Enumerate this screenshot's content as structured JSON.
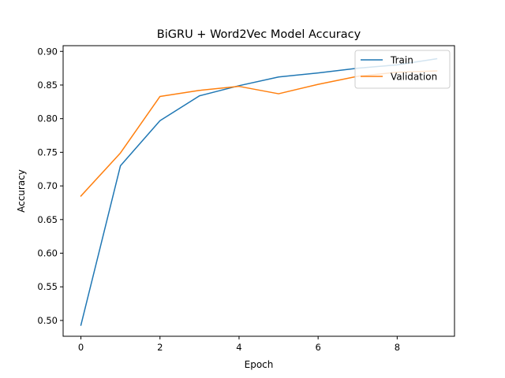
{
  "chart_data": {
    "type": "line",
    "title": "BiGRU + Word2Vec Model Accuracy",
    "xlabel": "Epoch",
    "ylabel": "Accuracy",
    "x": [
      0,
      1,
      2,
      3,
      4,
      5,
      6,
      7,
      8,
      9
    ],
    "xlim": [
      -0.45,
      9.45
    ],
    "ylim": [
      0.4765,
      0.9085
    ],
    "xticks": [
      0,
      2,
      4,
      6,
      8
    ],
    "yticks": [
      0.5,
      0.55,
      0.6,
      0.65,
      0.7,
      0.75,
      0.8,
      0.85,
      0.9
    ],
    "xtick_labels": [
      "0",
      "2",
      "4",
      "6",
      "8"
    ],
    "ytick_labels": [
      "0.50",
      "0.55",
      "0.60",
      "0.65",
      "0.70",
      "0.75",
      "0.80",
      "0.85",
      "0.90"
    ],
    "grid": false,
    "legend_position": "top-right",
    "series": [
      {
        "name": "Train",
        "color": "#1f77b4",
        "values": [
          0.493,
          0.73,
          0.797,
          0.834,
          0.849,
          0.862,
          0.868,
          0.875,
          0.88,
          0.889
        ]
      },
      {
        "name": "Validation",
        "color": "#ff7f0e",
        "values": [
          0.685,
          0.749,
          0.833,
          0.842,
          0.848,
          0.837,
          0.851,
          0.863,
          0.869,
          0.871
        ]
      }
    ]
  }
}
